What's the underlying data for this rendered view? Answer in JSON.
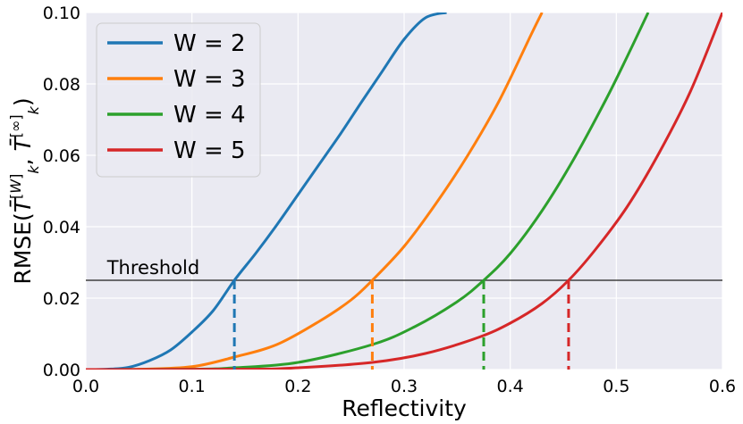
{
  "chart_data": {
    "type": "line",
    "title": "",
    "xlabel": "Reflectivity",
    "ylabel": "RMSE(T̄k[W], T̄k[∞])",
    "xlim": [
      0.0,
      0.6
    ],
    "ylim": [
      0.0,
      0.1
    ],
    "x_ticks": [
      0.0,
      0.1,
      0.2,
      0.3,
      0.4,
      0.5,
      0.6
    ],
    "y_ticks": [
      0.0,
      0.02,
      0.04,
      0.06,
      0.08,
      0.1
    ],
    "x_tick_labels": [
      "0.0",
      "0.1",
      "0.2",
      "0.3",
      "0.4",
      "0.5",
      "0.6"
    ],
    "y_tick_labels": [
      "0.00",
      "0.02",
      "0.04",
      "0.06",
      "0.08",
      "0.10"
    ],
    "grid": true,
    "legend_position": "top-left",
    "threshold": {
      "label": "Threshold",
      "y": 0.025,
      "color": "#404040"
    },
    "series": [
      {
        "name": "W = 2",
        "color": "#1f77b4",
        "crossing_x": 0.14,
        "x": [
          0.0,
          0.02,
          0.04,
          0.06,
          0.08,
          0.1,
          0.12,
          0.14,
          0.16,
          0.18,
          0.2,
          0.22,
          0.24,
          0.26,
          0.28,
          0.3,
          0.32,
          0.34
        ],
        "y": [
          0.0,
          0.0001,
          0.0006,
          0.0025,
          0.0055,
          0.0105,
          0.0165,
          0.025,
          0.0325,
          0.0405,
          0.049,
          0.0575,
          0.066,
          0.075,
          0.0838,
          0.0925,
          0.0985,
          0.1
        ]
      },
      {
        "name": "W = 3",
        "color": "#ff7f0e",
        "crossing_x": 0.27,
        "x": [
          0.0,
          0.05,
          0.1,
          0.14,
          0.18,
          0.22,
          0.25,
          0.27,
          0.3,
          0.33,
          0.36,
          0.39,
          0.42,
          0.43
        ],
        "y": [
          0.0,
          0.0001,
          0.0008,
          0.0035,
          0.007,
          0.0135,
          0.0195,
          0.025,
          0.0345,
          0.0465,
          0.06,
          0.0755,
          0.094,
          0.1
        ]
      },
      {
        "name": "W = 4",
        "color": "#2ca02c",
        "crossing_x": 0.375,
        "x": [
          0.0,
          0.1,
          0.14,
          0.2,
          0.27,
          0.31,
          0.35,
          0.375,
          0.4,
          0.43,
          0.46,
          0.49,
          0.51,
          0.53
        ],
        "y": [
          0.0,
          0.0001,
          0.0005,
          0.002,
          0.007,
          0.012,
          0.019,
          0.025,
          0.0325,
          0.0445,
          0.059,
          0.0755,
          0.0875,
          0.1
        ]
      },
      {
        "name": "W = 5",
        "color": "#d62728",
        "crossing_x": 0.455,
        "x": [
          0.0,
          0.15,
          0.2,
          0.27,
          0.32,
          0.37,
          0.4,
          0.43,
          0.455,
          0.48,
          0.51,
          0.54,
          0.57,
          0.6
        ],
        "y": [
          0.0,
          0.0001,
          0.0005,
          0.002,
          0.0045,
          0.009,
          0.013,
          0.0185,
          0.025,
          0.0335,
          0.0455,
          0.0605,
          0.078,
          0.1
        ]
      }
    ]
  }
}
